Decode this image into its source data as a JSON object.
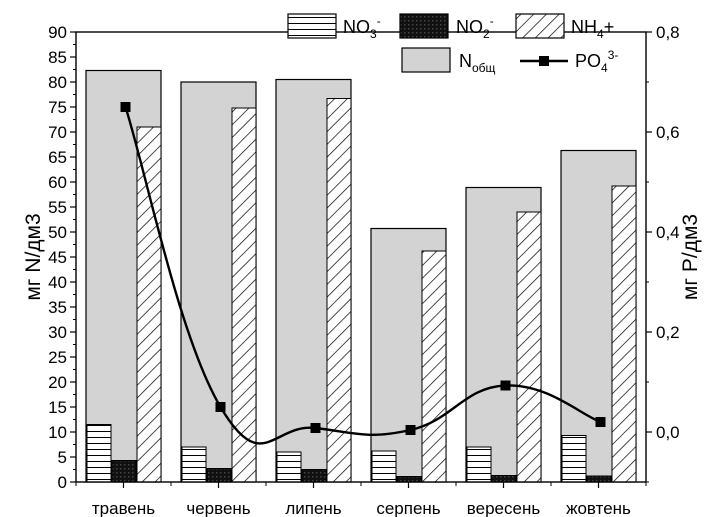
{
  "chart_data": {
    "type": "bar",
    "categories": [
      "травень",
      "червень",
      "липень",
      "серпень",
      "вересень",
      "жовтень"
    ],
    "series": [
      {
        "name": "NO3-",
        "axis": "left",
        "kind": "bar",
        "values": [
          11.5,
          7,
          6,
          6.2,
          7,
          9.3
        ]
      },
      {
        "name": "NO2-",
        "axis": "left",
        "kind": "bar",
        "values": [
          4.3,
          2.7,
          2.5,
          1.1,
          1.3,
          1.2
        ]
      },
      {
        "name": "NH4+",
        "axis": "left",
        "kind": "bar",
        "values": [
          71,
          74.8,
          76.7,
          46.2,
          54,
          59.2
        ]
      },
      {
        "name": "Nобщ",
        "axis": "left",
        "kind": "bar",
        "values": [
          82.3,
          80,
          80.5,
          50.7,
          58.9,
          66.3
        ]
      },
      {
        "name": "PO4 3-",
        "axis": "right",
        "kind": "line",
        "values": [
          0.65,
          0.05,
          0.008,
          0.004,
          0.093,
          0.02
        ]
      }
    ],
    "ylabel": "мг N/дм3",
    "y2label": "мг P/дм3",
    "ylim": [
      0,
      90
    ],
    "y2lim": [
      -0.1,
      0.8
    ],
    "yticks": [
      "0",
      "5",
      "10",
      "15",
      "20",
      "25",
      "30",
      "35",
      "40",
      "45",
      "50",
      "55",
      "60",
      "65",
      "70",
      "75",
      "80",
      "85",
      "90"
    ],
    "y2ticks": [
      "0,0",
      "0,2",
      "0,4",
      "0,6",
      "0,8"
    ],
    "grid": false,
    "legend": {
      "placement": "top-right",
      "no3": {
        "main": "NO",
        "sub": "3",
        "sup": "-"
      },
      "no2": {
        "main": "NO",
        "sub": "2",
        "sup": "-"
      },
      "nh4": {
        "main": "NH",
        "sub": "4",
        "tail": "+"
      },
      "ntot": {
        "main": "N",
        "sub": "общ"
      },
      "po4": {
        "main": "PO",
        "sub": "4",
        "sup": "3-"
      }
    },
    "colors": {
      "ntot": "#d3d3d3",
      "no2": "#1a1a1a",
      "bar_stroke": "#000000",
      "background": "#ffffff"
    }
  }
}
